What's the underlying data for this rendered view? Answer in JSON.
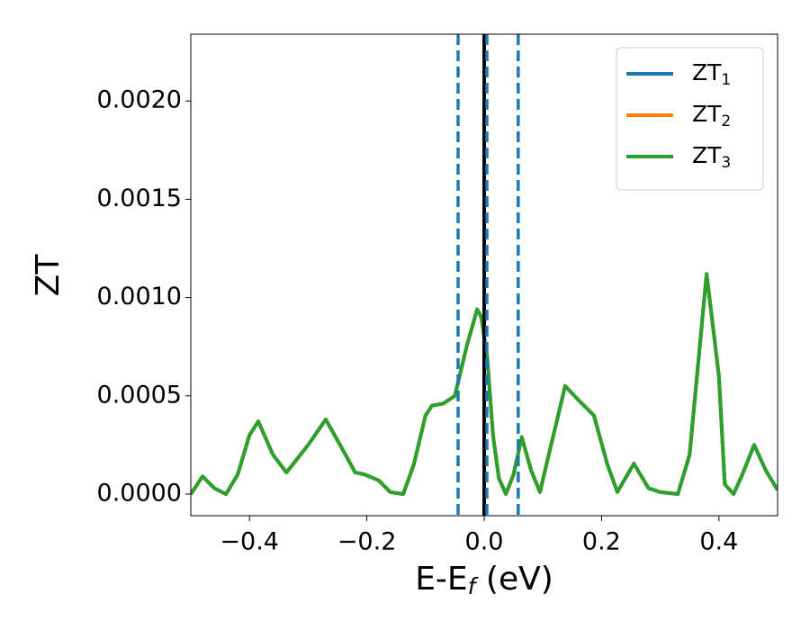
{
  "chart_data": {
    "type": "line",
    "xlabel": [
      "E-E",
      "f",
      " (eV)"
    ],
    "ylabel": "ZT",
    "x": [
      -0.5,
      -0.48,
      -0.46,
      -0.44,
      -0.42,
      -0.4,
      -0.385,
      -0.36,
      -0.337,
      -0.3,
      -0.27,
      -0.24,
      -0.22,
      -0.204,
      -0.18,
      -0.16,
      -0.138,
      -0.12,
      -0.1,
      -0.089,
      -0.07,
      -0.05,
      -0.03,
      -0.012,
      -0.005,
      0.0,
      0.005,
      0.015,
      0.025,
      0.037,
      0.05,
      0.064,
      0.08,
      0.095,
      0.11,
      0.138,
      0.16,
      0.187,
      0.21,
      0.227,
      0.255,
      0.28,
      0.3,
      0.33,
      0.35,
      0.379,
      0.4,
      0.41,
      0.425,
      0.44,
      0.46,
      0.48,
      0.5
    ],
    "series": [
      {
        "name": "ZT1",
        "color": "#1f77b4",
        "values": [
          0.0,
          9e-05,
          3e-05,
          0.0,
          0.0001,
          0.0003,
          0.00037,
          0.0002,
          0.00011,
          0.00025,
          0.00038,
          0.00022,
          0.00011,
          0.0001,
          7e-05,
          1e-05,
          0.0,
          0.00015,
          0.0004,
          0.00045,
          0.00046,
          0.0005,
          0.00075,
          0.00094,
          0.0009,
          0.0008,
          0.0007,
          0.0003,
          8e-05,
          0.0,
          0.0001,
          0.00029,
          0.00012,
          1e-05,
          0.0002,
          0.00055,
          0.00048,
          0.0004,
          0.00015,
          1e-05,
          0.000155,
          3e-05,
          1e-05,
          0.0,
          0.0002,
          0.00112,
          0.0006,
          5e-05,
          0.0,
          0.0001,
          0.00025,
          0.00012,
          2e-05
        ]
      },
      {
        "name": "ZT2",
        "color": "#ff7f0e",
        "values": [
          0.0,
          9e-05,
          3e-05,
          0.0,
          0.0001,
          0.0003,
          0.00037,
          0.0002,
          0.00011,
          0.00025,
          0.00038,
          0.00022,
          0.00011,
          0.0001,
          7e-05,
          1e-05,
          0.0,
          0.00015,
          0.0004,
          0.00045,
          0.00046,
          0.0005,
          0.00075,
          0.00094,
          0.0009,
          0.0008,
          0.0007,
          0.0003,
          8e-05,
          0.0,
          0.0001,
          0.00029,
          0.00012,
          1e-05,
          0.0002,
          0.00055,
          0.00048,
          0.0004,
          0.00015,
          1e-05,
          0.000155,
          3e-05,
          1e-05,
          0.0,
          0.0002,
          0.00112,
          0.0006,
          5e-05,
          0.0,
          0.0001,
          0.00025,
          0.00012,
          2e-05
        ]
      },
      {
        "name": "ZT3",
        "color": "#2ca02c",
        "values": [
          0.0,
          9e-05,
          3e-05,
          0.0,
          0.0001,
          0.0003,
          0.00037,
          0.0002,
          0.00011,
          0.00025,
          0.00038,
          0.00022,
          0.00011,
          0.0001,
          7e-05,
          1e-05,
          0.0,
          0.00015,
          0.0004,
          0.00045,
          0.00046,
          0.0005,
          0.00075,
          0.00094,
          0.0009,
          0.0008,
          0.0007,
          0.0003,
          8e-05,
          0.0,
          0.0001,
          0.00029,
          0.00012,
          1e-05,
          0.0002,
          0.00055,
          0.00048,
          0.0004,
          0.00015,
          1e-05,
          0.000155,
          3e-05,
          1e-05,
          0.0,
          0.0002,
          0.00112,
          0.0006,
          5e-05,
          0.0,
          0.0001,
          0.00025,
          0.00012,
          2e-05
        ]
      }
    ],
    "vlines": [
      {
        "x": 0.0,
        "color": "#000000",
        "style": "solid"
      },
      {
        "x": -0.0445,
        "color": "#1f77b4",
        "style": "dashed"
      },
      {
        "x": 0.0046,
        "color": "#1f77b4",
        "style": "dashed"
      },
      {
        "x": 0.058,
        "color": "#1f77b4",
        "style": "dashed"
      }
    ],
    "xlim": [
      -0.5,
      0.5
    ],
    "ylim": [
      -0.00011,
      0.00234
    ],
    "xticks": [
      {
        "value": -0.4,
        "label": "−0.4"
      },
      {
        "value": -0.2,
        "label": "−0.2"
      },
      {
        "value": 0.0,
        "label": "0.0"
      },
      {
        "value": 0.2,
        "label": "0.2"
      },
      {
        "value": 0.4,
        "label": "0.4"
      }
    ],
    "yticks": [
      {
        "value": 0.0,
        "label": "0.0000"
      },
      {
        "value": 0.0005,
        "label": "0.0005"
      },
      {
        "value": 0.001,
        "label": "0.0010"
      },
      {
        "value": 0.0015,
        "label": "0.0015"
      },
      {
        "value": 0.002,
        "label": "0.0020"
      }
    ],
    "legend": "upper right",
    "grid": false
  }
}
